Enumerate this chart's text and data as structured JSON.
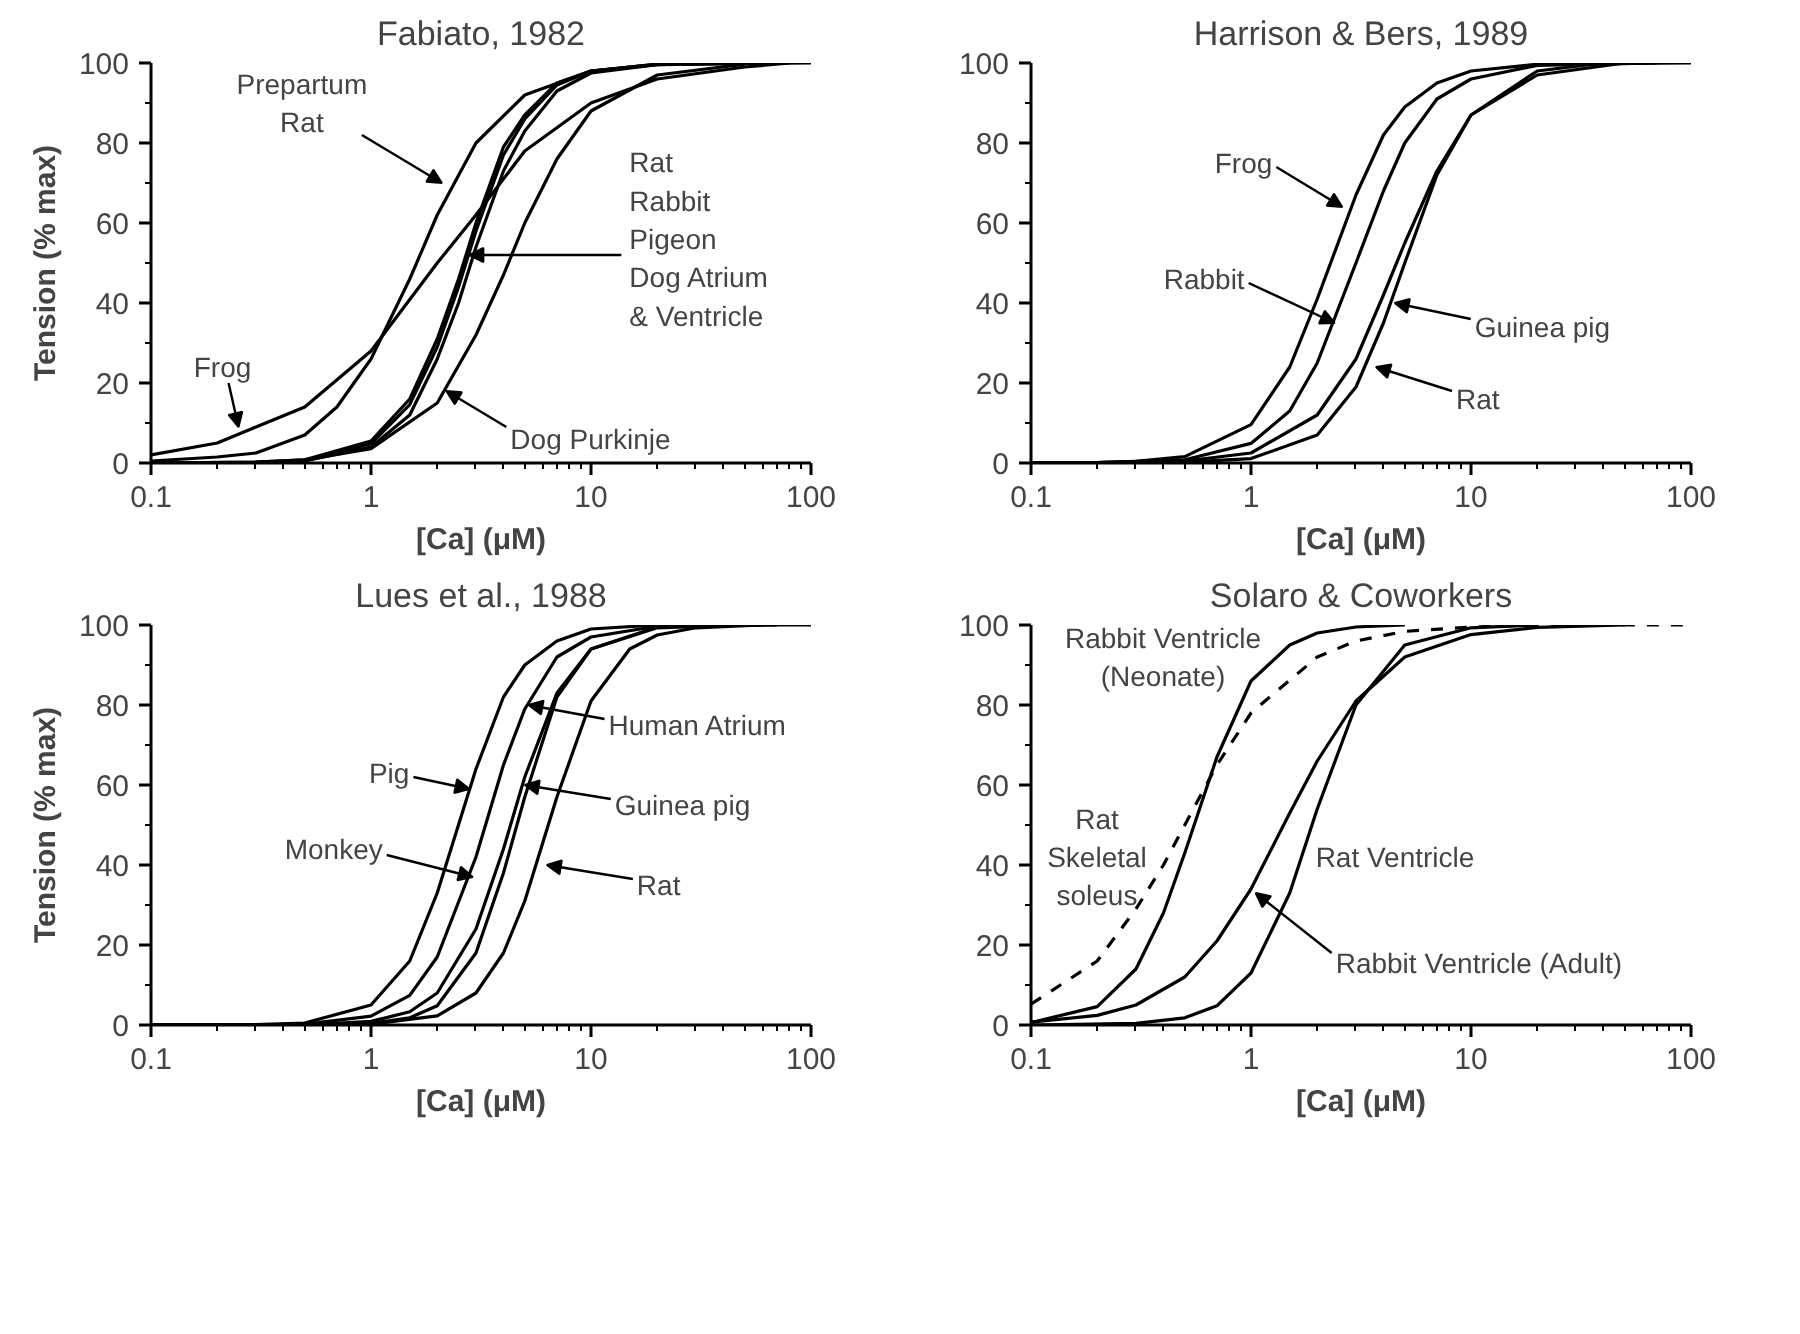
{
  "chart_data": [
    {
      "type": "line",
      "title": "Fabiato, 1982",
      "xlabel": "[Ca] (μM)",
      "ylabel": "Tension (% max)",
      "log": "x",
      "xlim": [
        0.1,
        100
      ],
      "xticks": [
        0.1,
        1,
        10,
        100
      ],
      "ylim": [
        0,
        100
      ],
      "yticks": [
        0,
        20,
        40,
        60,
        80,
        100
      ],
      "series": [
        {
          "color": "#000000",
          "x": [
            0.1,
            0.2,
            0.3,
            0.5,
            0.7,
            1,
            1.5,
            2,
            3,
            5,
            10,
            20,
            100
          ],
          "values": [
            0.5,
            1.5,
            2.5,
            7,
            14,
            26,
            46,
            62,
            80,
            92,
            98,
            99.6,
            100
          ]
        },
        {
          "color": "#000000",
          "x": [
            0.1,
            0.2,
            0.3,
            0.5,
            1,
            2,
            3,
            5,
            10,
            20,
            50,
            80
          ],
          "values": [
            2,
            5,
            9,
            14,
            28,
            50,
            62,
            78,
            90,
            96,
            99,
            100
          ]
        },
        {
          "color": "#000000",
          "x": [
            0.1,
            0.3,
            0.5,
            1,
            1.5,
            2,
            2.5,
            3,
            4,
            5,
            7,
            10,
            20,
            70
          ],
          "values": [
            0,
            0.2,
            0.8,
            5.5,
            16,
            31,
            46,
            60,
            79,
            87,
            95,
            98,
            99.7,
            100
          ]
        },
        {
          "color": "#000000",
          "x": [
            0.1,
            0.3,
            0.5,
            1,
            1.5,
            2,
            2.5,
            3,
            4,
            5,
            7,
            10,
            20,
            60
          ],
          "values": [
            0,
            0.1,
            0.6,
            4.8,
            14.6,
            29,
            44,
            58,
            77,
            86,
            94.5,
            98,
            99.7,
            100
          ]
        },
        {
          "color": "#000000",
          "x": [
            0.1,
            0.3,
            0.5,
            1,
            1.5,
            2,
            2.5,
            3,
            4,
            5,
            7,
            10,
            20,
            40
          ],
          "values": [
            0,
            0.1,
            0.5,
            4,
            12,
            26,
            40,
            54,
            73,
            83,
            93,
            97.5,
            99.6,
            100
          ]
        },
        {
          "color": "#000000",
          "x": [
            0.1,
            0.3,
            0.5,
            1,
            2,
            3,
            4,
            5,
            7,
            10,
            20,
            50
          ],
          "values": [
            0,
            0.2,
            0.8,
            3.6,
            15,
            32,
            47,
            60,
            76,
            88,
            97,
            99.7
          ]
        }
      ],
      "annotations": [
        {
          "text": "Prepartum\nRat",
          "x": 2.1,
          "y": 70
        },
        {
          "text": "Frog",
          "x": 0.25,
          "y": 9
        },
        {
          "text": "Rat\nRabbit\nPigeon\nDog Atrium\n  & Ventricle",
          "x": 2.8,
          "y": 52
        },
        {
          "text": "Dog Purkinje",
          "x": 2.2,
          "y": 18
        }
      ]
    },
    {
      "type": "line",
      "title": "Harrison & Bers, 1989",
      "xlabel": "[Ca] (μM)",
      "log": "x",
      "xlim": [
        0.1,
        100
      ],
      "xticks": [
        0.1,
        1,
        10,
        100
      ],
      "ylim": [
        0,
        100
      ],
      "yticks": [
        0,
        20,
        40,
        60,
        80,
        100
      ],
      "series": [
        {
          "color": "#000000",
          "x": [
            0.1,
            0.2,
            0.3,
            0.5,
            1,
            1.5,
            2,
            3,
            4,
            5,
            7,
            10,
            20,
            100
          ],
          "values": [
            0,
            0.1,
            0.4,
            1.6,
            9.6,
            24,
            41,
            67,
            82,
            89,
            95,
            98,
            99.7,
            100
          ]
        },
        {
          "color": "#000000",
          "x": [
            0.1,
            0.2,
            0.5,
            1,
            1.5,
            2,
            3,
            4,
            5,
            7,
            10,
            20,
            70
          ],
          "values": [
            0,
            0.1,
            0.8,
            4.9,
            13,
            25,
            50,
            68,
            80,
            91,
            96,
            99.4,
            100
          ]
        },
        {
          "color": "#000000",
          "x": [
            0.1,
            0.2,
            0.5,
            1,
            2,
            3,
            4,
            5,
            7,
            10,
            20,
            50
          ],
          "values": [
            0,
            0.1,
            0.5,
            2.5,
            12,
            26,
            42,
            55,
            73,
            87,
            97,
            100
          ]
        },
        {
          "color": "#000000",
          "x": [
            0.1,
            0.2,
            0.5,
            1,
            2,
            3,
            4,
            5,
            7,
            10,
            20,
            40
          ],
          "values": [
            0,
            0,
            0.2,
            1.1,
            7,
            19,
            35,
            50,
            72,
            87,
            98,
            100
          ]
        }
      ],
      "annotations": [
        {
          "text": "Frog",
          "x": 2.6,
          "y": 64
        },
        {
          "text": "Rabbit",
          "x": 2.4,
          "y": 35
        },
        {
          "text": "Guinea pig",
          "x": 4.5,
          "y": 40
        },
        {
          "text": "Rat",
          "x": 3.7,
          "y": 24
        }
      ]
    },
    {
      "type": "line",
      "title": "Lues et al., 1988",
      "xlabel": "[Ca] (μM)",
      "ylabel": "Tension (% max)",
      "log": "x",
      "xlim": [
        0.1,
        100
      ],
      "xticks": [
        0.1,
        1,
        10,
        100
      ],
      "ylim": [
        0,
        100
      ],
      "yticks": [
        0,
        20,
        40,
        60,
        80,
        100
      ],
      "series": [
        {
          "color": "#000000",
          "x": [
            0.1,
            0.3,
            0.5,
            1,
            1.5,
            2,
            3,
            4,
            5,
            7,
            10,
            20,
            100
          ],
          "values": [
            0,
            0.1,
            0.5,
            5,
            16,
            33,
            64,
            82,
            90,
            96,
            99,
            100,
            100
          ]
        },
        {
          "color": "#000000",
          "x": [
            0.1,
            0.3,
            0.5,
            1,
            1.5,
            2,
            3,
            4,
            5,
            7,
            10,
            20,
            70
          ],
          "values": [
            0,
            0,
            0.2,
            2.2,
            7.4,
            17,
            42,
            65,
            79,
            92,
            97,
            99.7,
            100
          ]
        },
        {
          "color": "#000000",
          "x": [
            0.1,
            0.5,
            1,
            1.5,
            2,
            3,
            4,
            5,
            7,
            10,
            20,
            50
          ],
          "values": [
            0,
            0,
            0.9,
            3.3,
            8,
            24,
            44,
            62,
            83,
            94,
            99.3,
            100
          ]
        },
        {
          "color": "#000000",
          "x": [
            0.1,
            0.5,
            1,
            1.5,
            2,
            3,
            4,
            5,
            7,
            10,
            20,
            40
          ],
          "values": [
            0,
            0,
            0.4,
            1.8,
            4.8,
            18,
            38,
            57,
            82,
            94,
            99.5,
            100
          ]
        },
        {
          "color": "#000000",
          "x": [
            0.1,
            1,
            2,
            3,
            4,
            5,
            7,
            10,
            15,
            20,
            30,
            60
          ],
          "values": [
            0,
            0.2,
            2.3,
            8,
            18,
            31,
            57,
            81,
            94,
            97.5,
            99.3,
            100
          ]
        }
      ],
      "annotations": [
        {
          "text": "Pig",
          "x": 2.8,
          "y": 59
        },
        {
          "text": "Monkey",
          "x": 2.9,
          "y": 37
        },
        {
          "text": "Human Atrium",
          "x": 5.2,
          "y": 80
        },
        {
          "text": "Guinea pig",
          "x": 5.0,
          "y": 60
        },
        {
          "text": "Rat",
          "x": 6.3,
          "y": 40
        }
      ]
    },
    {
      "type": "line",
      "title": "Solaro & Coworkers",
      "xlabel": "[Ca] (μM)",
      "log": "x",
      "xlim": [
        0.1,
        100
      ],
      "xticks": [
        0.1,
        1,
        10,
        100
      ],
      "ylim": [
        0,
        100
      ],
      "yticks": [
        0,
        20,
        40,
        60,
        80,
        100
      ],
      "series": [
        {
          "color": "#000000",
          "x": [
            0.1,
            0.2,
            0.3,
            0.4,
            0.5,
            0.7,
            1,
            1.5,
            2,
            3,
            5
          ],
          "values": [
            0.6,
            4.6,
            14,
            28,
            43,
            67,
            86,
            95,
            98,
            99.5,
            100
          ]
        },
        {
          "color": "#000000",
          "line_style": "dashed",
          "x": [
            0.1,
            0.2,
            0.3,
            0.4,
            0.5,
            0.7,
            1,
            2,
            3,
            5,
            10,
            20,
            100
          ],
          "values": [
            5.2,
            16,
            29,
            40,
            50,
            65,
            78,
            92,
            96,
            98.4,
            99.5,
            100,
            100
          ]
        },
        {
          "color": "#000000",
          "x": [
            0.1,
            0.2,
            0.3,
            0.5,
            0.7,
            1,
            1.5,
            2,
            3,
            5,
            10,
            20,
            50
          ],
          "values": [
            0.7,
            2.4,
            5,
            12,
            21,
            34,
            53,
            66,
            81,
            92,
            97.6,
            99.4,
            100
          ]
        },
        {
          "color": "#000000",
          "x": [
            0.1,
            0.3,
            0.5,
            0.7,
            1,
            1.5,
            2,
            3,
            5,
            10,
            20
          ],
          "values": [
            0,
            0.4,
            1.8,
            4.8,
            13,
            33,
            54,
            80,
            95,
            99.3,
            100
          ]
        }
      ],
      "annotations": [
        "Rabbit Ventricle\n(Neonate)",
        "Rat\nSkeletal\nsoleus",
        "Rat Ventricle",
        {
          "text": "Rabbit Ventricle (Adult)",
          "x": 1.05,
          "y": 33
        }
      ]
    }
  ]
}
